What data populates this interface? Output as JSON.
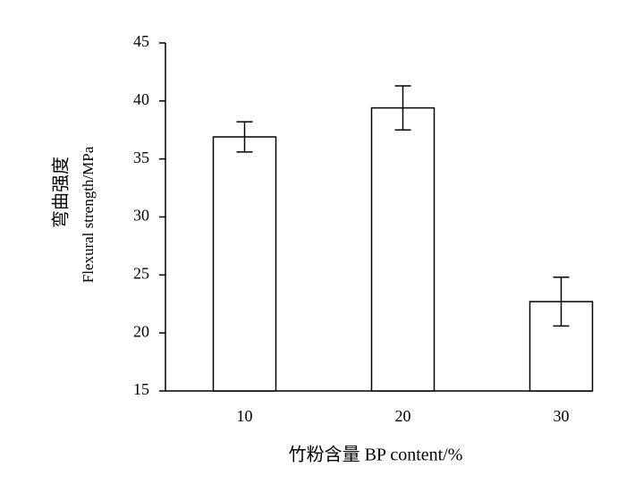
{
  "chart_data": {
    "type": "bar",
    "ylabel": [
      "弯曲强度",
      "Flexural strength/MPa"
    ],
    "xlabel": "竹粉含量 BP content/%",
    "categories": [
      "10",
      "20",
      "30"
    ],
    "values": [
      36.9,
      39.4,
      22.7
    ],
    "errors": [
      1.3,
      1.9,
      2.1
    ],
    "color": "#ffffff",
    "ylim": [
      15,
      45
    ],
    "yticks": [
      15,
      20,
      25,
      30,
      35,
      40,
      45
    ],
    "grid": false
  }
}
